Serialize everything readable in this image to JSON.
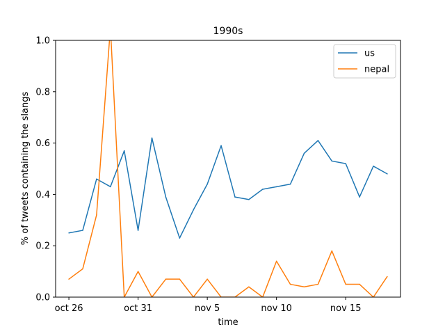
{
  "chart_data": {
    "type": "line",
    "title": "1990s",
    "xlabel": "time",
    "ylabel": "% of tweets containing the slangs",
    "x": [
      "2023-10-26",
      "2023-10-27",
      "2023-10-28",
      "2023-10-29",
      "2023-10-30",
      "2023-10-31",
      "2023-11-01",
      "2023-11-02",
      "2023-11-03",
      "2023-11-04",
      "2023-11-05",
      "2023-11-06",
      "2023-11-07",
      "2023-11-08",
      "2023-11-09",
      "2023-11-10",
      "2023-11-11",
      "2023-11-12",
      "2023-11-13",
      "2023-11-14",
      "2023-11-15",
      "2023-11-16",
      "2023-11-17",
      "2023-11-18"
    ],
    "xlim": [
      "2023-10-25T01:00",
      "2023-11-18T23:00"
    ],
    "xticks": [
      {
        "date": "2023-10-26",
        "label": "oct 26"
      },
      {
        "date": "2023-10-31",
        "label": "oct 31"
      },
      {
        "date": "2023-11-05",
        "label": "nov 5"
      },
      {
        "date": "2023-11-10",
        "label": "nov 10"
      },
      {
        "date": "2023-11-15",
        "label": "nov 15"
      }
    ],
    "ylim": [
      0,
      1.0
    ],
    "yticks": [
      "0.0",
      "0.2",
      "0.4",
      "0.6",
      "0.8",
      "1.0"
    ],
    "grid": false,
    "legend_position": "top-right",
    "series": [
      {
        "name": "us",
        "color": "#1f77b4",
        "values": [
          0.25,
          0.26,
          0.46,
          0.43,
          0.57,
          0.26,
          0.62,
          0.39,
          0.23,
          0.34,
          0.44,
          0.59,
          0.39,
          0.38,
          0.42,
          0.43,
          0.44,
          0.56,
          0.61,
          0.53,
          0.52,
          0.39,
          0.51,
          0.48
        ]
      },
      {
        "name": "nepal",
        "color": "#ff7f0e",
        "values": [
          0.07,
          0.11,
          0.32,
          1.05,
          0.0,
          0.1,
          0.0,
          0.07,
          0.07,
          0.0,
          0.07,
          0.0,
          0.0,
          0.04,
          0.0,
          0.14,
          0.05,
          0.04,
          0.05,
          0.18,
          0.05,
          0.05,
          0.0,
          0.08
        ]
      }
    ]
  }
}
